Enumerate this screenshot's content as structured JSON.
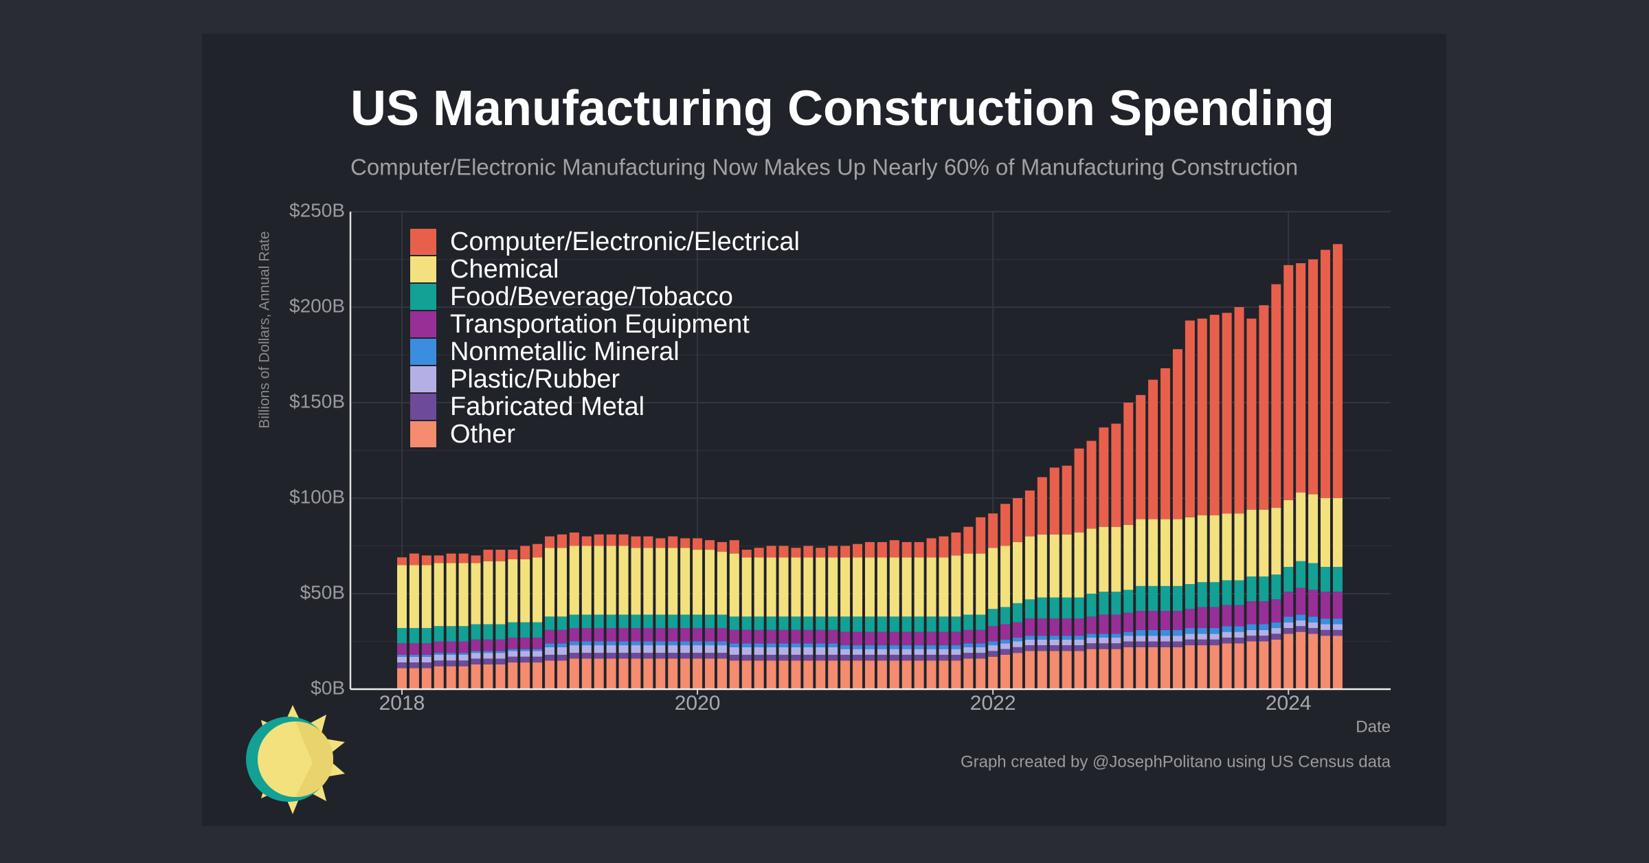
{
  "chart_data": {
    "type": "stacked_bar",
    "title": "US Manufacturing Construction Spending",
    "subtitle": "Computer/Electronic Manufacturing Now Makes Up Nearly 60% of Manufacturing Construction",
    "y_label": "Billions of Dollars, Annual Rate",
    "x_label": "Date",
    "credit": "Graph created by @JosephPolitano using US Census data",
    "categories": [
      "2018",
      null,
      null,
      null,
      null,
      null,
      null,
      null,
      null,
      null,
      null,
      null,
      null,
      null,
      null,
      null,
      null,
      null,
      null,
      null,
      null,
      null,
      null,
      null,
      "2020",
      null,
      null,
      null,
      null,
      null,
      null,
      null,
      null,
      null,
      null,
      null,
      null,
      null,
      null,
      null,
      null,
      null,
      null,
      null,
      null,
      null,
      null,
      null,
      "2022",
      null,
      null,
      null,
      null,
      null,
      null,
      null,
      null,
      null,
      null,
      null,
      null,
      null,
      null,
      null,
      null,
      null,
      null,
      null,
      null,
      null,
      null,
      null,
      "2024",
      null,
      null,
      null,
      null
    ],
    "ylim": [
      0,
      250
    ],
    "yticks": [
      {
        "value": 0,
        "label": "$0B"
      },
      {
        "value": 50,
        "label": "$50B"
      },
      {
        "value": 100,
        "label": "$100B"
      },
      {
        "value": 150,
        "label": "$150B"
      },
      {
        "value": 200,
        "label": "$200B"
      },
      {
        "value": 250,
        "label": "$250B"
      }
    ],
    "grid": true,
    "legend": "upper left",
    "series": [
      {
        "name": "Computer/Electronic/Electrical",
        "color": "#e8604c",
        "values": [
          4,
          6,
          5,
          4,
          5,
          5,
          4,
          6,
          6,
          5,
          7,
          7,
          6,
          7,
          7,
          5,
          6,
          6,
          6,
          6,
          6,
          5,
          6,
          5,
          6,
          5,
          5,
          7,
          4,
          5,
          6,
          6,
          5,
          6,
          5,
          6,
          6,
          7,
          8,
          8,
          9,
          8,
          8,
          10,
          11,
          12,
          14,
          19,
          18,
          22,
          23,
          24,
          30,
          35,
          36,
          44,
          46,
          52,
          54,
          64,
          65,
          73,
          79,
          89,
          103,
          103,
          105,
          105,
          108,
          100,
          107,
          117,
          123,
          120,
          123,
          130,
          133
        ]
      },
      {
        "name": "Chemical",
        "color": "#f3e17e",
        "values": [
          33,
          33,
          33,
          33,
          33,
          33,
          32,
          33,
          33,
          33,
          33,
          34,
          36,
          36,
          36,
          36,
          36,
          36,
          36,
          35,
          35,
          35,
          35,
          35,
          34,
          34,
          33,
          33,
          31,
          31,
          31,
          31,
          31,
          31,
          31,
          31,
          31,
          31,
          31,
          31,
          31,
          31,
          31,
          31,
          31,
          32,
          32,
          32,
          32,
          32,
          32,
          33,
          33,
          33,
          33,
          34,
          34,
          34,
          34,
          34,
          35,
          35,
          35,
          35,
          35,
          35,
          35,
          35,
          35,
          35,
          35,
          35,
          35,
          36,
          36,
          36,
          36
        ]
      },
      {
        "name": "Food/Beverage/Tobacco",
        "color": "#12a194",
        "values": [
          8,
          8,
          8,
          8,
          8,
          8,
          8,
          8,
          8,
          8,
          8,
          8,
          7,
          7,
          7,
          7,
          7,
          7,
          7,
          7,
          7,
          7,
          7,
          7,
          7,
          7,
          7,
          7,
          7,
          7,
          7,
          7,
          7,
          7,
          7,
          7,
          8,
          8,
          8,
          8,
          8,
          8,
          8,
          8,
          8,
          8,
          8,
          8,
          9,
          9,
          10,
          10,
          11,
          11,
          11,
          11,
          12,
          12,
          12,
          12,
          13,
          13,
          13,
          13,
          13,
          13,
          13,
          13,
          13,
          13,
          13,
          13,
          13,
          14,
          14,
          13,
          13
        ]
      },
      {
        "name": "Transportation Equipment",
        "color": "#982f97",
        "values": [
          6,
          6,
          6,
          6,
          6,
          6,
          6,
          6,
          6,
          6,
          6,
          6,
          7,
          7,
          7,
          7,
          7,
          7,
          7,
          7,
          7,
          7,
          7,
          7,
          7,
          7,
          7,
          7,
          7,
          7,
          7,
          7,
          7,
          7,
          7,
          7,
          7,
          7,
          7,
          7,
          7,
          7,
          7,
          7,
          7,
          7,
          7,
          7,
          8,
          8,
          8,
          9,
          9,
          9,
          9,
          9,
          9,
          10,
          10,
          10,
          10,
          10,
          10,
          10,
          10,
          11,
          11,
          11,
          11,
          12,
          12,
          12,
          13,
          14,
          14,
          14,
          14
        ]
      },
      {
        "name": "Nonmetallic Mineral",
        "color": "#3b8de0",
        "values": [
          1,
          1,
          1,
          1,
          1,
          1,
          1,
          1,
          1,
          1,
          1,
          1,
          2,
          2,
          2,
          2,
          2,
          2,
          2,
          2,
          2,
          2,
          2,
          2,
          2,
          2,
          2,
          2,
          2,
          2,
          2,
          2,
          2,
          2,
          2,
          2,
          2,
          2,
          2,
          2,
          2,
          2,
          2,
          2,
          2,
          2,
          2,
          2,
          2,
          2,
          2,
          2,
          2,
          2,
          2,
          2,
          2,
          2,
          2,
          2,
          3,
          3,
          3,
          3,
          3,
          3,
          3,
          3,
          3,
          3,
          3,
          3,
          3,
          3,
          3,
          3,
          3
        ]
      },
      {
        "name": "Plastic/Rubber",
        "color": "#b4b0e6",
        "values": [
          3,
          3,
          3,
          3,
          3,
          3,
          3,
          3,
          3,
          3,
          3,
          3,
          4,
          4,
          4,
          4,
          4,
          4,
          4,
          4,
          4,
          4,
          4,
          4,
          4,
          4,
          4,
          4,
          4,
          4,
          4,
          4,
          4,
          4,
          4,
          4,
          3,
          3,
          3,
          3,
          3,
          3,
          3,
          3,
          3,
          3,
          3,
          3,
          3,
          3,
          3,
          3,
          3,
          3,
          3,
          3,
          3,
          3,
          3,
          3,
          3,
          3,
          3,
          3,
          3,
          3,
          3,
          3,
          3,
          3,
          3,
          3,
          3,
          3,
          3,
          3,
          3
        ]
      },
      {
        "name": "Fabricated Metal",
        "color": "#6e4a9a",
        "values": [
          3,
          3,
          3,
          3,
          3,
          3,
          3,
          3,
          3,
          3,
          3,
          3,
          3,
          3,
          3,
          3,
          3,
          3,
          3,
          3,
          3,
          3,
          3,
          3,
          3,
          3,
          3,
          3,
          3,
          3,
          3,
          3,
          3,
          3,
          3,
          3,
          3,
          3,
          3,
          3,
          3,
          3,
          3,
          3,
          3,
          3,
          3,
          3,
          3,
          3,
          3,
          3,
          3,
          3,
          3,
          3,
          3,
          3,
          3,
          3,
          3,
          3,
          3,
          3,
          3,
          3,
          3,
          3,
          3,
          3,
          3,
          3,
          3,
          3,
          3,
          3,
          3
        ]
      },
      {
        "name": "Other",
        "color": "#f58b6f",
        "values": [
          11,
          11,
          11,
          12,
          12,
          12,
          13,
          13,
          13,
          14,
          14,
          14,
          15,
          15,
          16,
          16,
          16,
          16,
          16,
          16,
          16,
          16,
          16,
          16,
          16,
          16,
          16,
          15,
          15,
          15,
          15,
          15,
          15,
          15,
          15,
          15,
          15,
          15,
          15,
          15,
          15,
          15,
          15,
          15,
          15,
          15,
          16,
          16,
          17,
          18,
          19,
          20,
          20,
          20,
          20,
          20,
          21,
          21,
          21,
          22,
          22,
          22,
          22,
          22,
          23,
          23,
          23,
          24,
          24,
          25,
          25,
          26,
          29,
          30,
          29,
          28,
          28
        ]
      }
    ]
  }
}
